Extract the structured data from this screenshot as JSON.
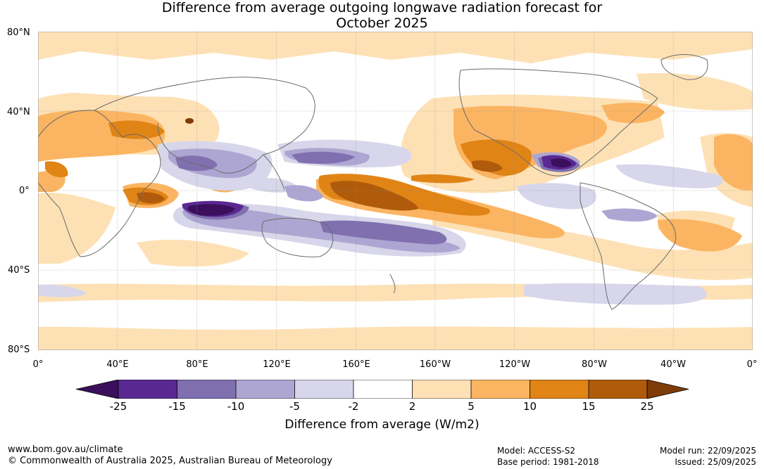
{
  "title": {
    "line1": "Difference from average outgoing longwave radiation forecast for",
    "line2": "October 2025"
  },
  "map": {
    "lat_labels": [
      "80°N",
      "40°N",
      "0°",
      "40°S",
      "80°S"
    ],
    "lon_labels": [
      "0°",
      "40°E",
      "80°E",
      "120°E",
      "160°E",
      "160°W",
      "120°W",
      "80°W",
      "40°W",
      "0°"
    ]
  },
  "colorbar": {
    "title": "Difference from average (W/m2)",
    "ticks": [
      "-25",
      "-15",
      "-10",
      "-5",
      "-2",
      "2",
      "5",
      "10",
      "15",
      "25"
    ],
    "colors": [
      "#3b0f5c",
      "#5a2891",
      "#8070b0",
      "#aea6d2",
      "#d7d6ea",
      "#ffffff",
      "#fde1b5",
      "#fbb562",
      "#e08416",
      "#b05b0c",
      "#7f3b08"
    ]
  },
  "footer": {
    "url": "www.bom.gov.au/climate",
    "copyright": "© Commonwealth of Australia 2025, Australian Bureau of Meteorology",
    "model": "Model: ACCESS-S2",
    "base_period": "Base period: 1981-2018",
    "model_run": "Model run: 22/09/2025",
    "issued": "Issued: 25/09/2025"
  }
}
